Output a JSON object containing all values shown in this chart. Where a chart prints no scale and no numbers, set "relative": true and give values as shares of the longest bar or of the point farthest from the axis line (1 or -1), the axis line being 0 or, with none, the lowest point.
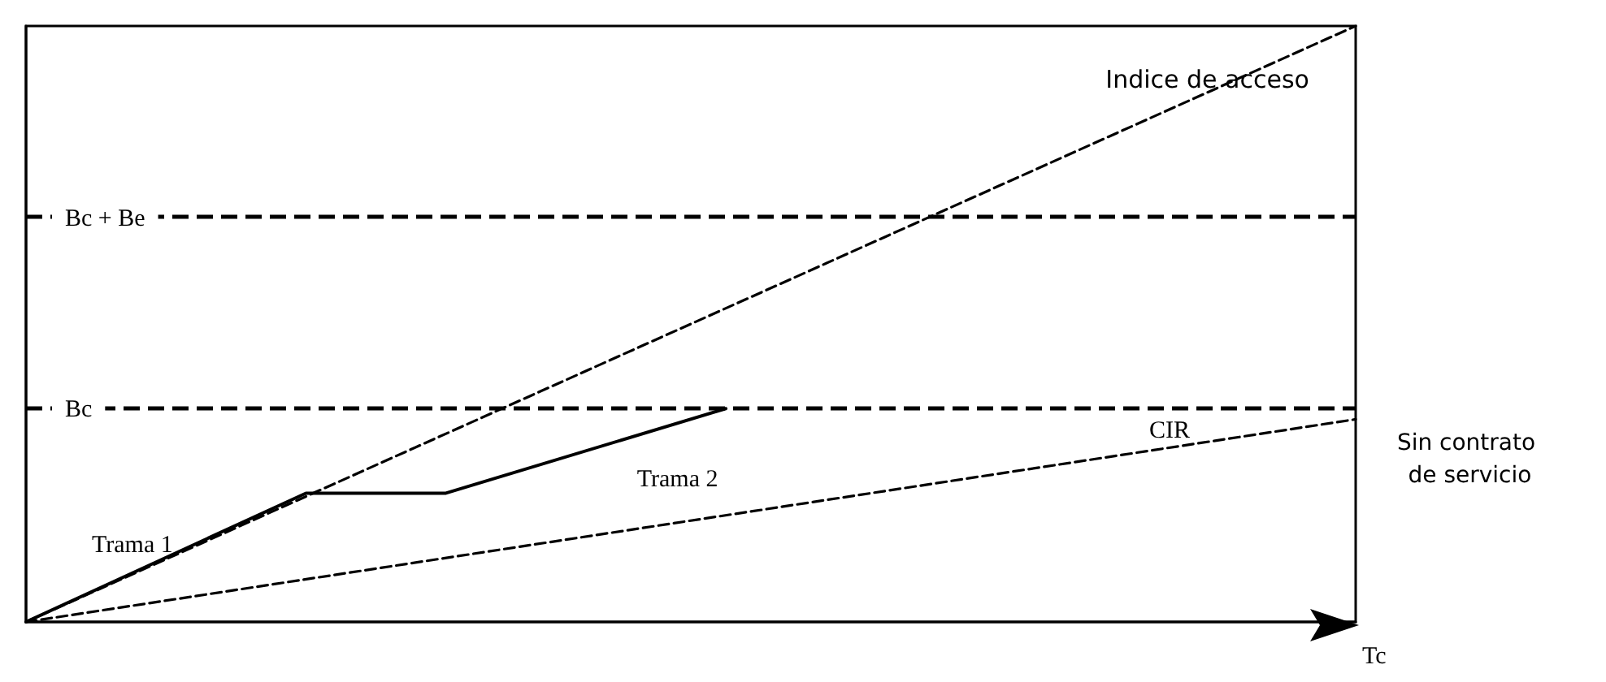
{
  "chart_data": {
    "type": "line",
    "relative": true,
    "xlabel": "Tc",
    "legend": false,
    "grid": false,
    "marker": "none",
    "categories": [
      null,
      null,
      null,
      null,
      null,
      null,
      null,
      null,
      null,
      null,
      null,
      null,
      null,
      null,
      null,
      null,
      null,
      null,
      null,
      null
    ],
    "series": [
      {
        "name": "Indice de acceso",
        "color": "#000000",
        "line_style": "dashed",
        "values": [
          0,
          null,
          null,
          null,
          null,
          null,
          null,
          null,
          null,
          null,
          null,
          null,
          null,
          null,
          null,
          null,
          null,
          null,
          null,
          1
        ]
      },
      {
        "color": "#000000",
        "line_style": "solid",
        "values": [
          0,
          null,
          null,
          null,
          0.216,
          null,
          0.216,
          null,
          null,
          null,
          0.358,
          null,
          null,
          null,
          null,
          null,
          null,
          null,
          null,
          null
        ]
      },
      {
        "name": "CIR",
        "color": "#000000",
        "line_style": "dashed",
        "values": [
          0,
          null,
          null,
          null,
          null,
          null,
          null,
          null,
          null,
          null,
          null,
          null,
          null,
          null,
          null,
          null,
          null,
          null,
          null,
          0.34
        ]
      }
    ],
    "ref_lines": [
      {
        "axis": "y",
        "value": 0.68,
        "label": "Bc + Be",
        "color": "#000000",
        "line_style": "dashed"
      },
      {
        "axis": "y",
        "value": 0.358,
        "label": "Bc",
        "color": "#000000",
        "line_style": "dashed"
      }
    ],
    "annotations": [
      "Trama 1",
      "Trama 2",
      "Sin contrato de servicio"
    ]
  }
}
